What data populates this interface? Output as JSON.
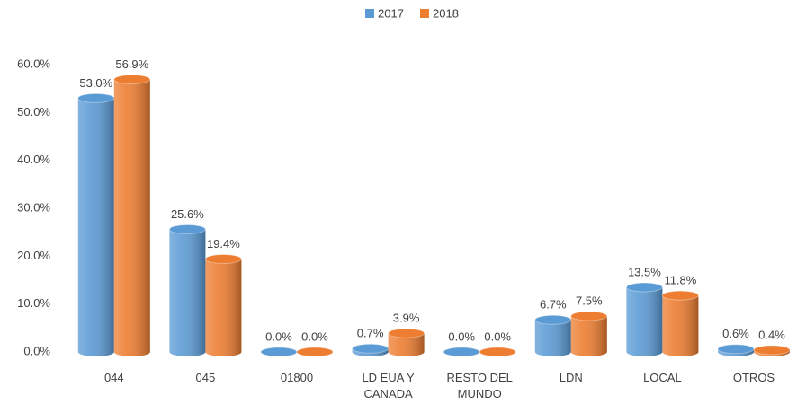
{
  "chart_data": {
    "type": "bar",
    "categories": [
      "044",
      "045",
      "01800",
      "LD EUA Y CANADA",
      "RESTO DEL MUNDO",
      "LDN",
      "LOCAL",
      "OTROS"
    ],
    "series": [
      {
        "name": "2017",
        "color": "#5b9bd5",
        "values": [
          53.0,
          25.6,
          0.0,
          0.7,
          0.0,
          6.7,
          13.5,
          0.6
        ],
        "value_labels": [
          "53.0%",
          "25.6%",
          "0.0%",
          "0.7%",
          "0.0%",
          "6.7%",
          "13.5%",
          "0.6%"
        ]
      },
      {
        "name": "2018",
        "color": "#ed7d31",
        "values": [
          56.9,
          19.4,
          0.0,
          3.9,
          0.0,
          7.5,
          11.8,
          0.4
        ],
        "value_labels": [
          "56.9%",
          "19.4%",
          "0.0%",
          "3.9%",
          "0.0%",
          "7.5%",
          "11.8%",
          "0.4%"
        ]
      }
    ],
    "ylim": [
      0,
      60
    ],
    "yticks": [
      {
        "value": 0,
        "label": "0.0%"
      },
      {
        "value": 10,
        "label": "10.0%"
      },
      {
        "value": 20,
        "label": "20.0%"
      },
      {
        "value": 30,
        "label": "30.0%"
      },
      {
        "value": 40,
        "label": "40.0%"
      },
      {
        "value": 50,
        "label": "50.0%"
      },
      {
        "value": 60,
        "label": "60.0%"
      }
    ],
    "grid": false,
    "legend": "top"
  }
}
